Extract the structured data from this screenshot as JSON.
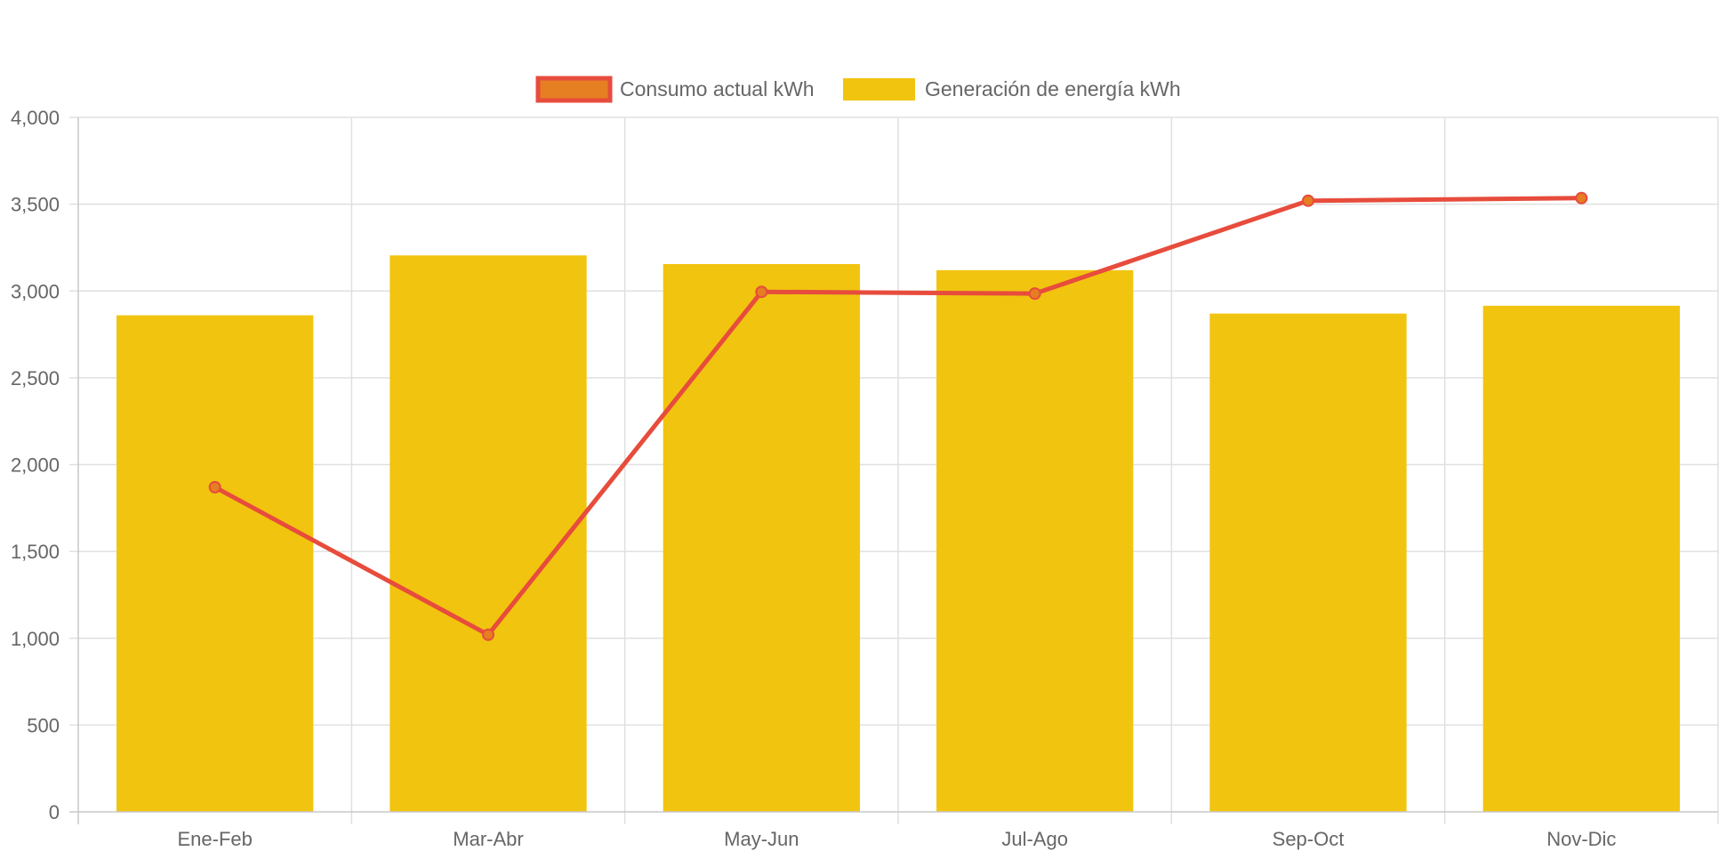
{
  "chart_data": {
    "type": "bar",
    "title": "",
    "xlabel": "",
    "ylabel": "",
    "categories": [
      "Ene-Feb",
      "Mar-Abr",
      "May-Jun",
      "Jul-Ago",
      "Sep-Oct",
      "Nov-Dic"
    ],
    "ylim": [
      0,
      4000
    ],
    "yticks": [
      0,
      500,
      1000,
      1500,
      2000,
      2500,
      3000,
      3500,
      4000
    ],
    "ytick_labels": [
      "0",
      "500",
      "1,000",
      "1,500",
      "2,000",
      "2,500",
      "3,000",
      "3,500",
      "4,000"
    ],
    "grid": true,
    "legend_position": "top-center",
    "series": [
      {
        "name": "Consumo actual kWh",
        "type": "line",
        "color": "#e74c3c",
        "point_color": "#e67e22",
        "values": [
          1870,
          1020,
          2995,
          2985,
          3520,
          3535
        ]
      },
      {
        "name": "Generación de energía kWh",
        "type": "bar",
        "color": "#f1c40f",
        "values": [
          2860,
          3205,
          3155,
          3120,
          2870,
          2915
        ]
      }
    ]
  }
}
